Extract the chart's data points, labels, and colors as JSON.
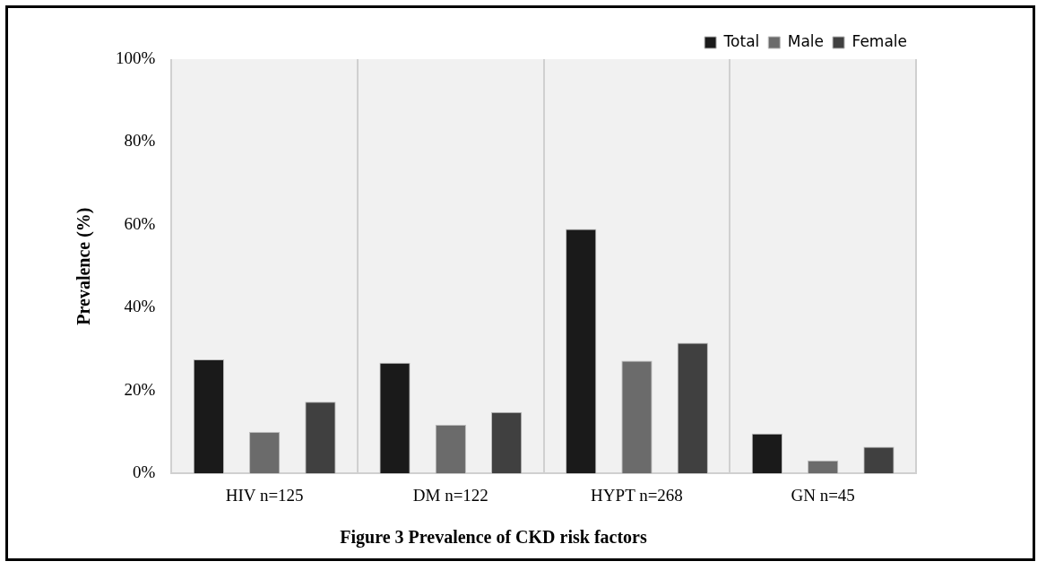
{
  "chart_data": {
    "type": "bar",
    "title": "Figure 3 Prevalence of CKD risk factors",
    "ylabel": "Prevalence (%)",
    "categories": [
      "HIV n=125",
      "DM n=122",
      "HYPT n=268",
      "GN n=45"
    ],
    "series": [
      {
        "name": "Total",
        "color": "#1a1a1a",
        "values": [
          27.5,
          26.7,
          59.0,
          9.6
        ]
      },
      {
        "name": "Male",
        "color": "#6b6b6b",
        "values": [
          10.0,
          11.7,
          27.2,
          3.1
        ]
      },
      {
        "name": "Female",
        "color": "#404040",
        "values": [
          17.3,
          14.8,
          31.5,
          6.4
        ]
      }
    ],
    "ylim": [
      0,
      100
    ],
    "yticks": [
      {
        "value": 0,
        "label": "0%"
      },
      {
        "value": 20,
        "label": "20%"
      },
      {
        "value": 40,
        "label": "40%"
      },
      {
        "value": 60,
        "label": "60%"
      },
      {
        "value": 80,
        "label": "80%"
      },
      {
        "value": 100,
        "label": "100%"
      }
    ],
    "grid": "x",
    "legend": "top right"
  }
}
